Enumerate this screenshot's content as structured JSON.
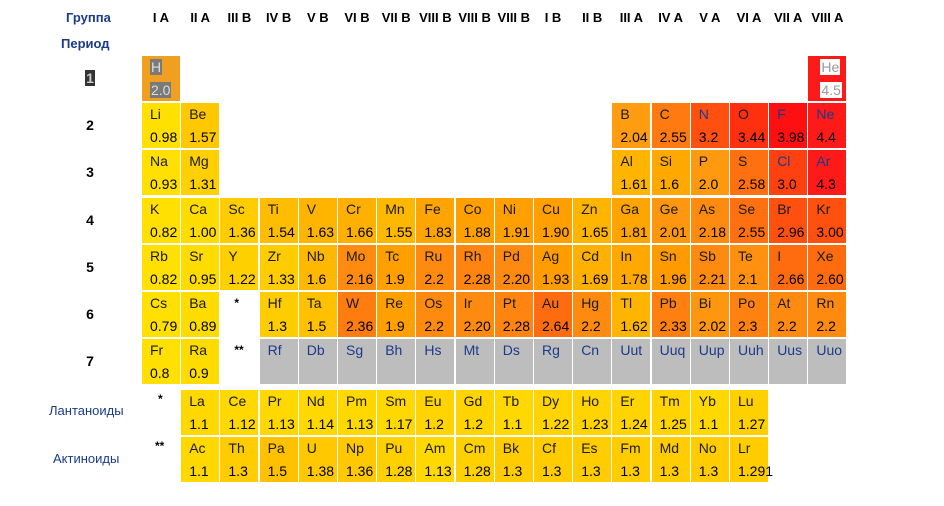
{
  "headers": {
    "group_label": "Группа",
    "period_label": "Период",
    "groups": [
      "I A",
      "II A",
      "III B",
      "IV B",
      "V B",
      "VI B",
      "VII B",
      "VIII B",
      "VIII B",
      "VIII B",
      "I B",
      "II B",
      "III A",
      "IV A",
      "V A",
      "VI A",
      "VII A",
      "VIII A"
    ]
  },
  "periods": [
    "1",
    "2",
    "3",
    "4",
    "5",
    "6",
    "7"
  ],
  "series_labels": {
    "lanthanides": "Лантаноиды",
    "actinides": "Актиноиды",
    "lan_mark": "*",
    "act_mark": "**"
  },
  "elements": [
    {
      "s": "H",
      "en": "2.0",
      "r": 1,
      "c": 1,
      "color": "#f0a020",
      "sel": true
    },
    {
      "s": "He",
      "en": "4.5",
      "r": 1,
      "c": 18,
      "color": "#ff1a1a",
      "sel": true
    },
    {
      "s": "Li",
      "en": "0.98",
      "r": 2,
      "c": 1,
      "color": "#ffe000"
    },
    {
      "s": "Be",
      "en": "1.57",
      "r": 2,
      "c": 2,
      "color": "#ffc800"
    },
    {
      "s": "B",
      "en": "2.04",
      "r": 2,
      "c": 13,
      "color": "#ff9c10"
    },
    {
      "s": "C",
      "en": "2.55",
      "r": 2,
      "c": 14,
      "color": "#ff7a10"
    },
    {
      "s": "N",
      "en": "3.2",
      "r": 2,
      "c": 15,
      "color": "#ff5010",
      "blue": true
    },
    {
      "s": "O",
      "en": "3.44",
      "r": 2,
      "c": 16,
      "color": "#ff3010"
    },
    {
      "s": "F",
      "en": "3.98",
      "r": 2,
      "c": 17,
      "color": "#ff1010",
      "blue": true
    },
    {
      "s": "Ne",
      "en": "4.4",
      "r": 2,
      "c": 18,
      "color": "#ff1a1a",
      "blue": true
    },
    {
      "s": "Na",
      "en": "0.93",
      "r": 3,
      "c": 1,
      "color": "#ffe000"
    },
    {
      "s": "Mg",
      "en": "1.31",
      "r": 3,
      "c": 2,
      "color": "#ffd000"
    },
    {
      "s": "Al",
      "en": "1.61",
      "r": 3,
      "c": 13,
      "color": "#ffb400"
    },
    {
      "s": "Si",
      "en": "1.6",
      "r": 3,
      "c": 14,
      "color": "#ffa800"
    },
    {
      "s": "P",
      "en": "2.0",
      "r": 3,
      "c": 15,
      "color": "#ff9a10"
    },
    {
      "s": "S",
      "en": "2.58",
      "r": 3,
      "c": 16,
      "color": "#ff7010"
    },
    {
      "s": "Cl",
      "en": "3.0",
      "r": 3,
      "c": 17,
      "color": "#ff4010",
      "blue": true
    },
    {
      "s": "Ar",
      "en": "4.3",
      "r": 3,
      "c": 18,
      "color": "#ff1a1a",
      "blue": true
    },
    {
      "s": "K",
      "en": "0.82",
      "r": 4,
      "c": 1,
      "color": "#ffe000"
    },
    {
      "s": "Ca",
      "en": "1.00",
      "r": 4,
      "c": 2,
      "color": "#ffdc00"
    },
    {
      "s": "Sc",
      "en": "1.36",
      "r": 4,
      "c": 3,
      "color": "#ffcc00"
    },
    {
      "s": "Ti",
      "en": "1.54",
      "r": 4,
      "c": 4,
      "color": "#ffbc00"
    },
    {
      "s": "V",
      "en": "1.63",
      "r": 4,
      "c": 5,
      "color": "#ffb400"
    },
    {
      "s": "Cr",
      "en": "1.66",
      "r": 4,
      "c": 6,
      "color": "#ffb000"
    },
    {
      "s": "Mn",
      "en": "1.55",
      "r": 4,
      "c": 7,
      "color": "#ffb800"
    },
    {
      "s": "Fe",
      "en": "1.83",
      "r": 4,
      "c": 8,
      "color": "#ffa400"
    },
    {
      "s": "Co",
      "en": "1.88",
      "r": 4,
      "c": 9,
      "color": "#ffa000"
    },
    {
      "s": "Ni",
      "en": "1.91",
      "r": 4,
      "c": 10,
      "color": "#ffa000"
    },
    {
      "s": "Cu",
      "en": "1.90",
      "r": 4,
      "c": 11,
      "color": "#ffa000"
    },
    {
      "s": "Zn",
      "en": "1.65",
      "r": 4,
      "c": 12,
      "color": "#ffb400"
    },
    {
      "s": "Ga",
      "en": "1.81",
      "r": 4,
      "c": 13,
      "color": "#ffa400"
    },
    {
      "s": "Ge",
      "en": "2.01",
      "r": 4,
      "c": 14,
      "color": "#ff9610"
    },
    {
      "s": "As",
      "en": "2.18",
      "r": 4,
      "c": 15,
      "color": "#ff8a10"
    },
    {
      "s": "Se",
      "en": "2.55",
      "r": 4,
      "c": 16,
      "color": "#ff7010"
    },
    {
      "s": "Br",
      "en": "2.96",
      "r": 4,
      "c": 17,
      "color": "#ff5010"
    },
    {
      "s": "Kr",
      "en": "3.00",
      "r": 4,
      "c": 18,
      "color": "#ff5010"
    },
    {
      "s": "Rb",
      "en": "0.82",
      "r": 5,
      "c": 1,
      "color": "#ffe000"
    },
    {
      "s": "Sr",
      "en": "0.95",
      "r": 5,
      "c": 2,
      "color": "#ffdc00"
    },
    {
      "s": "Y",
      "en": "1.22",
      "r": 5,
      "c": 3,
      "color": "#ffd000"
    },
    {
      "s": "Zr",
      "en": "1.33",
      "r": 5,
      "c": 4,
      "color": "#ffcc00"
    },
    {
      "s": "Nb",
      "en": "1.6",
      "r": 5,
      "c": 5,
      "color": "#ffb800"
    },
    {
      "s": "Mo",
      "en": "2.16",
      "r": 5,
      "c": 6,
      "color": "#ff8c10"
    },
    {
      "s": "Tc",
      "en": "1.9",
      "r": 5,
      "c": 7,
      "color": "#ffa000"
    },
    {
      "s": "Ru",
      "en": "2.2",
      "r": 5,
      "c": 8,
      "color": "#ff8a10"
    },
    {
      "s": "Rh",
      "en": "2.28",
      "r": 5,
      "c": 9,
      "color": "#ff8410"
    },
    {
      "s": "Pd",
      "en": "2.20",
      "r": 5,
      "c": 10,
      "color": "#ff8a10"
    },
    {
      "s": "Ag",
      "en": "1.93",
      "r": 5,
      "c": 11,
      "color": "#ff9c00"
    },
    {
      "s": "Cd",
      "en": "1.69",
      "r": 5,
      "c": 12,
      "color": "#ffb000"
    },
    {
      "s": "In",
      "en": "1.78",
      "r": 5,
      "c": 13,
      "color": "#ffa800"
    },
    {
      "s": "Sn",
      "en": "1.96",
      "r": 5,
      "c": 14,
      "color": "#ff9a00"
    },
    {
      "s": "Sb",
      "en": "2.21",
      "r": 5,
      "c": 15,
      "color": "#ff8a10"
    },
    {
      "s": "Te",
      "en": "2.1",
      "r": 5,
      "c": 16,
      "color": "#ff9010"
    },
    {
      "s": "I",
      "en": "2.66",
      "r": 5,
      "c": 17,
      "color": "#ff6c10"
    },
    {
      "s": "Xe",
      "en": "2.60",
      "r": 5,
      "c": 18,
      "color": "#ff6c10"
    },
    {
      "s": "Cs",
      "en": "0.79",
      "r": 6,
      "c": 1,
      "color": "#ffe000"
    },
    {
      "s": "Ba",
      "en": "0.89",
      "r": 6,
      "c": 2,
      "color": "#ffdc00"
    },
    {
      "s": "Hf",
      "en": "1.3",
      "r": 6,
      "c": 4,
      "color": "#ffcc00"
    },
    {
      "s": "Ta",
      "en": "1.5",
      "r": 6,
      "c": 5,
      "color": "#ffc000"
    },
    {
      "s": "W",
      "en": "2.36",
      "r": 6,
      "c": 6,
      "color": "#ff7c10"
    },
    {
      "s": "Re",
      "en": "1.9",
      "r": 6,
      "c": 7,
      "color": "#ffa000"
    },
    {
      "s": "Os",
      "en": "2.2",
      "r": 6,
      "c": 8,
      "color": "#ff8a10"
    },
    {
      "s": "Ir",
      "en": "2.20",
      "r": 6,
      "c": 9,
      "color": "#ff8a10"
    },
    {
      "s": "Pt",
      "en": "2.28",
      "r": 6,
      "c": 10,
      "color": "#ff8410"
    },
    {
      "s": "Au",
      "en": "2.64",
      "r": 6,
      "c": 11,
      "color": "#ff6c10"
    },
    {
      "s": "Hg",
      "en": "2.2",
      "r": 6,
      "c": 12,
      "color": "#ff8a10"
    },
    {
      "s": "Tl",
      "en": "1.62",
      "r": 6,
      "c": 13,
      "color": "#ffb400"
    },
    {
      "s": "Pb",
      "en": "2.33",
      "r": 6,
      "c": 14,
      "color": "#ff8010"
    },
    {
      "s": "Bi",
      "en": "2.02",
      "r": 6,
      "c": 15,
      "color": "#ff9610"
    },
    {
      "s": "Po",
      "en": "2.3",
      "r": 6,
      "c": 16,
      "color": "#ff8210"
    },
    {
      "s": "At",
      "en": "2.2",
      "r": 6,
      "c": 17,
      "color": "#ff8a10"
    },
    {
      "s": "Rn",
      "en": "2.2",
      "r": 6,
      "c": 18,
      "color": "#ff8a10"
    },
    {
      "s": "Fr",
      "en": "0.8",
      "r": 7,
      "c": 1,
      "color": "#ffe000"
    },
    {
      "s": "Ra",
      "en": "0.9",
      "r": 7,
      "c": 2,
      "color": "#ffdc00"
    },
    {
      "s": "Rf",
      "en": "",
      "r": 7,
      "c": 4,
      "color": "#bdbdbd",
      "gray": true
    },
    {
      "s": "Db",
      "en": "",
      "r": 7,
      "c": 5,
      "color": "#bdbdbd",
      "gray": true
    },
    {
      "s": "Sg",
      "en": "",
      "r": 7,
      "c": 6,
      "color": "#bdbdbd",
      "gray": true
    },
    {
      "s": "Bh",
      "en": "",
      "r": 7,
      "c": 7,
      "color": "#bdbdbd",
      "gray": true
    },
    {
      "s": "Hs",
      "en": "",
      "r": 7,
      "c": 8,
      "color": "#bdbdbd",
      "gray": true
    },
    {
      "s": "Mt",
      "en": "",
      "r": 7,
      "c": 9,
      "color": "#bdbdbd",
      "gray": true
    },
    {
      "s": "Ds",
      "en": "",
      "r": 7,
      "c": 10,
      "color": "#bdbdbd",
      "gray": true
    },
    {
      "s": "Rg",
      "en": "",
      "r": 7,
      "c": 11,
      "color": "#bdbdbd",
      "gray": true
    },
    {
      "s": "Cn",
      "en": "",
      "r": 7,
      "c": 12,
      "color": "#bdbdbd",
      "gray": true
    },
    {
      "s": "Uut",
      "en": "",
      "r": 7,
      "c": 13,
      "color": "#bdbdbd",
      "gray": true
    },
    {
      "s": "Uuq",
      "en": "",
      "r": 7,
      "c": 14,
      "color": "#bdbdbd",
      "gray": true
    },
    {
      "s": "Uup",
      "en": "",
      "r": 7,
      "c": 15,
      "color": "#bdbdbd",
      "gray": true
    },
    {
      "s": "Uuh",
      "en": "",
      "r": 7,
      "c": 16,
      "color": "#bdbdbd",
      "gray": true
    },
    {
      "s": "Uus",
      "en": "",
      "r": 7,
      "c": 17,
      "color": "#bdbdbd",
      "gray": true
    },
    {
      "s": "Uuo",
      "en": "",
      "r": 7,
      "c": 18,
      "color": "#bdbdbd",
      "gray": true
    },
    {
      "s": "La",
      "en": "1.1",
      "r": 8,
      "c": 2,
      "color": "#ffd800"
    },
    {
      "s": "Ce",
      "en": "1.12",
      "r": 8,
      "c": 3,
      "color": "#ffd800"
    },
    {
      "s": "Pr",
      "en": "1.13",
      "r": 8,
      "c": 4,
      "color": "#ffd800"
    },
    {
      "s": "Nd",
      "en": "1.14",
      "r": 8,
      "c": 5,
      "color": "#ffd800"
    },
    {
      "s": "Pm",
      "en": "1.13",
      "r": 8,
      "c": 6,
      "color": "#ffd800"
    },
    {
      "s": "Sm",
      "en": "1.17",
      "r": 8,
      "c": 7,
      "color": "#ffd800"
    },
    {
      "s": "Eu",
      "en": "1.2",
      "r": 8,
      "c": 8,
      "color": "#ffd400"
    },
    {
      "s": "Gd",
      "en": "1.2",
      "r": 8,
      "c": 9,
      "color": "#ffd400"
    },
    {
      "s": "Tb",
      "en": "1.1",
      "r": 8,
      "c": 10,
      "color": "#ffd800"
    },
    {
      "s": "Dy",
      "en": "1.22",
      "r": 8,
      "c": 11,
      "color": "#ffd400"
    },
    {
      "s": "Ho",
      "en": "1.23",
      "r": 8,
      "c": 12,
      "color": "#ffd400"
    },
    {
      "s": "Er",
      "en": "1.24",
      "r": 8,
      "c": 13,
      "color": "#ffd400"
    },
    {
      "s": "Tm",
      "en": "1.25",
      "r": 8,
      "c": 14,
      "color": "#ffd400"
    },
    {
      "s": "Yb",
      "en": "1.1",
      "r": 8,
      "c": 15,
      "color": "#ffd800"
    },
    {
      "s": "Lu",
      "en": "1.27",
      "r": 8,
      "c": 16,
      "color": "#ffd000"
    },
    {
      "s": "Ac",
      "en": "1.1",
      "r": 9,
      "c": 2,
      "color": "#ffd800"
    },
    {
      "s": "Th",
      "en": "1.3",
      "r": 9,
      "c": 3,
      "color": "#ffcc00"
    },
    {
      "s": "Pa",
      "en": "1.5",
      "r": 9,
      "c": 4,
      "color": "#ffc000"
    },
    {
      "s": "U",
      "en": "1.38",
      "r": 9,
      "c": 5,
      "color": "#ffc800"
    },
    {
      "s": "Np",
      "en": "1.36",
      "r": 9,
      "c": 6,
      "color": "#ffc800"
    },
    {
      "s": "Pu",
      "en": "1.28",
      "r": 9,
      "c": 7,
      "color": "#ffd000"
    },
    {
      "s": "Am",
      "en": "1.13",
      "r": 9,
      "c": 8,
      "color": "#ffd800"
    },
    {
      "s": "Cm",
      "en": "1.28",
      "r": 9,
      "c": 9,
      "color": "#ffd000"
    },
    {
      "s": "Bk",
      "en": "1.3",
      "r": 9,
      "c": 10,
      "color": "#ffcc00"
    },
    {
      "s": "Cf",
      "en": "1.3",
      "r": 9,
      "c": 11,
      "color": "#ffcc00"
    },
    {
      "s": "Es",
      "en": "1.3",
      "r": 9,
      "c": 12,
      "color": "#ffcc00"
    },
    {
      "s": "Fm",
      "en": "1.3",
      "r": 9,
      "c": 13,
      "color": "#ffcc00"
    },
    {
      "s": "Md",
      "en": "1.3",
      "r": 9,
      "c": 14,
      "color": "#ffcc00"
    },
    {
      "s": "No",
      "en": "1.3",
      "r": 9,
      "c": 15,
      "color": "#ffcc00"
    },
    {
      "s": "Lr",
      "en": "1.291",
      "r": 9,
      "c": 16,
      "color": "#ffcc00"
    }
  ],
  "placeholders": [
    {
      "text": "*",
      "r": 6,
      "c": 3
    },
    {
      "text": "**",
      "r": 7,
      "c": 3
    }
  ]
}
